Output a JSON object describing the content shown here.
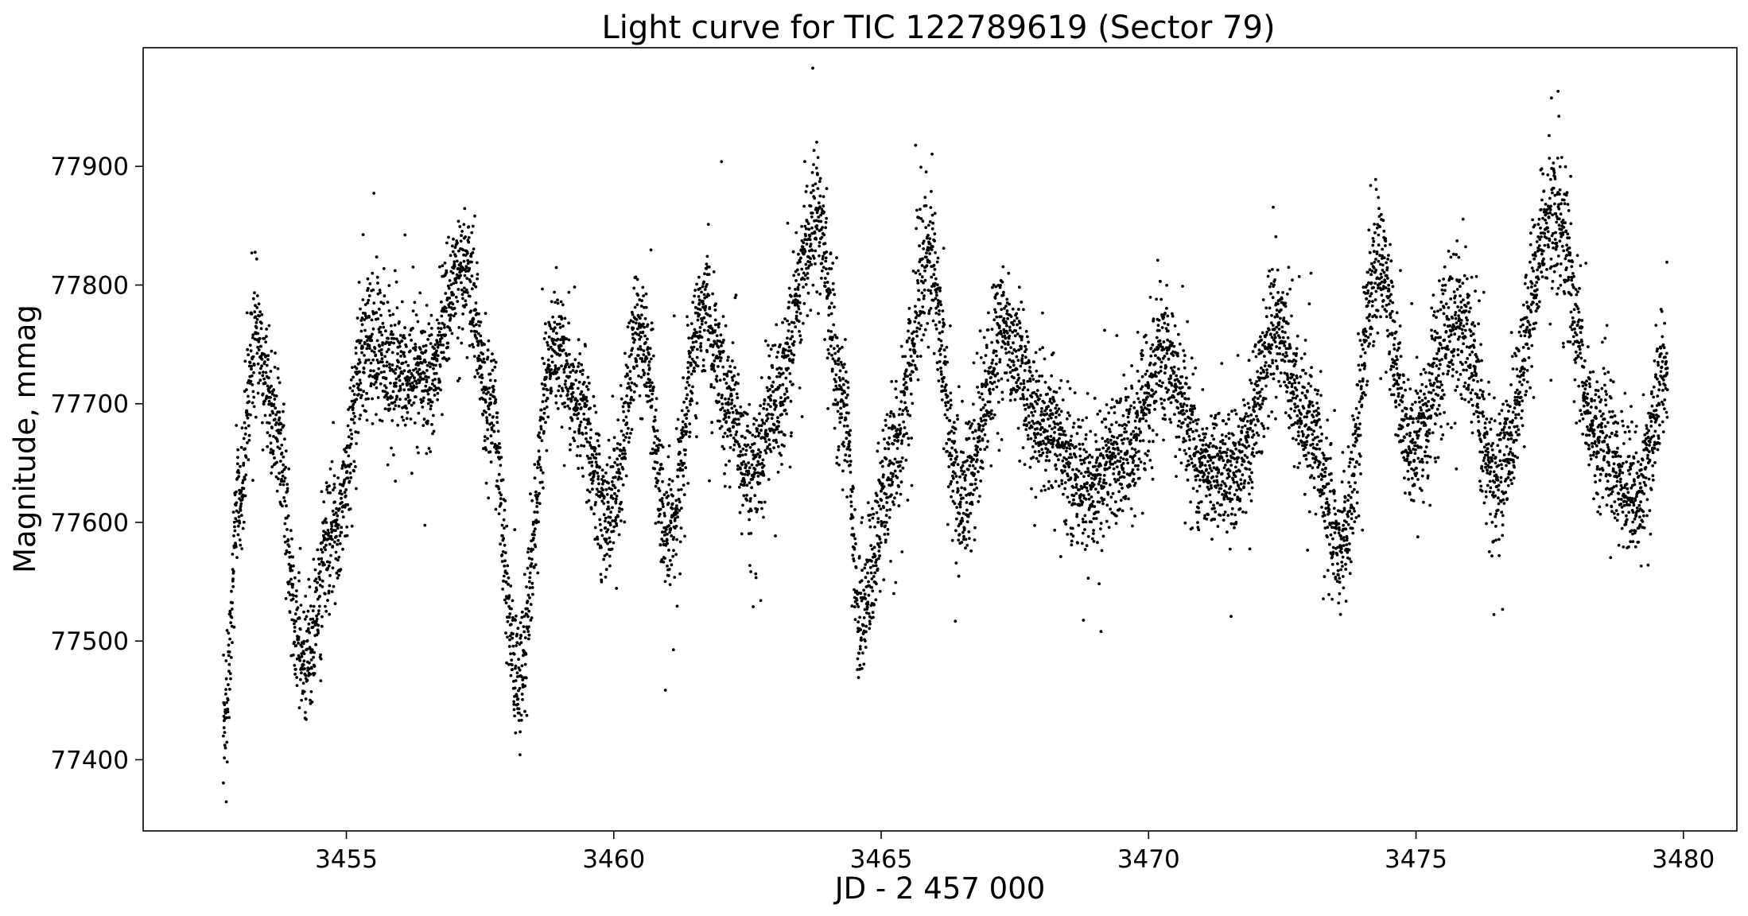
{
  "chart_data": {
    "type": "scatter",
    "title": "Light curve for TIC 122789619 (Sector 79)",
    "xlabel": "JD - 2 457 000",
    "ylabel": "Magnitude, mmag",
    "xlim": [
      3451.2,
      3481.0
    ],
    "ylim": [
      77340,
      78000
    ],
    "xticks": [
      3455,
      3460,
      3465,
      3470,
      3475,
      3480
    ],
    "yticks": [
      77400,
      77500,
      77600,
      77700,
      77800,
      77900
    ],
    "grid": false,
    "legend": "none",
    "marker_color": "#000000",
    "series": [
      {
        "x": [
          3452.7,
          3453.0,
          3453.3,
          3453.6,
          3454.2,
          3454.8,
          3455.4,
          3456.0,
          3456.5,
          3457.2,
          3457.7,
          3458.2,
          3458.9,
          3459.3,
          3459.9,
          3460.5,
          3461.0,
          3461.7,
          3462.1,
          3462.6,
          3463.0,
          3463.8,
          3464.3,
          3464.6,
          3465.2,
          3465.9,
          3466.5,
          3467.3,
          3468.0,
          3468.8,
          3469.6,
          3470.3,
          3471.0,
          3471.6,
          3472.4,
          3473.0,
          3473.6,
          3474.3,
          3474.9,
          3475.8,
          3476.5,
          3477.6,
          3478.4,
          3479.1,
          3479.7
        ],
        "y": [
          77420,
          77620,
          77760,
          77700,
          77480,
          77600,
          77750,
          77730,
          77720,
          77820,
          77700,
          77470,
          77750,
          77700,
          77600,
          77760,
          77590,
          77780,
          77700,
          77640,
          77700,
          77850,
          77700,
          77520,
          77650,
          77820,
          77620,
          77760,
          77680,
          77630,
          77660,
          77740,
          77650,
          77640,
          77760,
          77680,
          77580,
          77820,
          77660,
          77770,
          77640,
          77860,
          77670,
          77620,
          77730
        ]
      }
    ]
  }
}
